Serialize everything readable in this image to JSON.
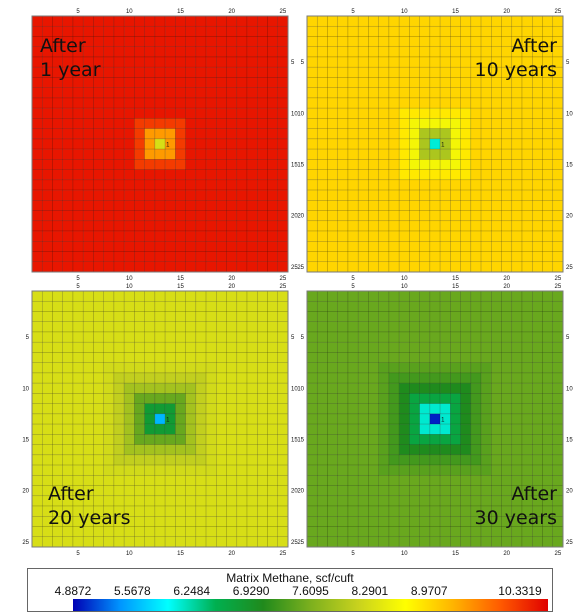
{
  "chart_data": [
    {
      "type": "heatmap",
      "label": "After\n1 year",
      "grid": 25,
      "well_marker": "1",
      "x_ticks": [
        "5",
        "10",
        "15",
        "20",
        "25"
      ],
      "y_ticks": [
        "5",
        "10",
        "15",
        "20",
        "25"
      ],
      "background_value": 10.2,
      "center_value": 8.3,
      "falloff": [
        1.0,
        0.42,
        0.12,
        0.0
      ]
    },
    {
      "type": "heatmap",
      "label": "After\n10 years",
      "grid": 25,
      "well_marker": "1",
      "x_ticks": [
        "5",
        "10",
        "15",
        "20",
        "25"
      ],
      "y_ticks": [
        "5",
        "10",
        "15",
        "20",
        "25"
      ],
      "background_value": 9.0,
      "center_value": 6.1,
      "falloff": [
        1.0,
        0.36,
        0.14,
        0.05,
        0.0
      ]
    },
    {
      "type": "heatmap",
      "label": "After\n20 years",
      "grid": 25,
      "well_marker": "1",
      "x_ticks": [
        "5",
        "10",
        "15",
        "20",
        "25"
      ],
      "y_ticks": [
        "5",
        "10",
        "15",
        "20",
        "25"
      ],
      "background_value": 8.3,
      "center_value": 5.6,
      "falloff": [
        1.0,
        0.55,
        0.3,
        0.15,
        0.07,
        0.02,
        0.0
      ]
    },
    {
      "type": "heatmap",
      "label": "After\n30 years",
      "grid": 25,
      "well_marker": "1",
      "x_ticks": [
        "5",
        "10",
        "15",
        "20",
        "25"
      ],
      "y_ticks": [
        "5",
        "10",
        "15",
        "20",
        "25"
      ],
      "background_value": 7.5,
      "center_value": 5.0,
      "falloff": [
        1.0,
        0.55,
        0.33,
        0.18,
        0.09,
        0.04,
        0.0
      ]
    }
  ],
  "legend": {
    "title": "Matrix Methane, scf/cuft",
    "ticks": [
      "4.8872",
      "5.5678",
      "6.2484",
      "6.9290",
      "7.6095",
      "8.2901",
      "8.9707",
      "10.3319"
    ],
    "tick_values": [
      4.8872,
      5.5678,
      6.2484,
      6.929,
      7.6095,
      8.2901,
      8.9707,
      10.3319
    ],
    "range": [
      4.8872,
      10.3319
    ],
    "colors": [
      "#0000b4",
      "#0096ff",
      "#00ffff",
      "#00b050",
      "#208a1c",
      "#7cb01e",
      "#c8d21e",
      "#ffff00",
      "#ffb400",
      "#ff5a00",
      "#e00000"
    ]
  }
}
